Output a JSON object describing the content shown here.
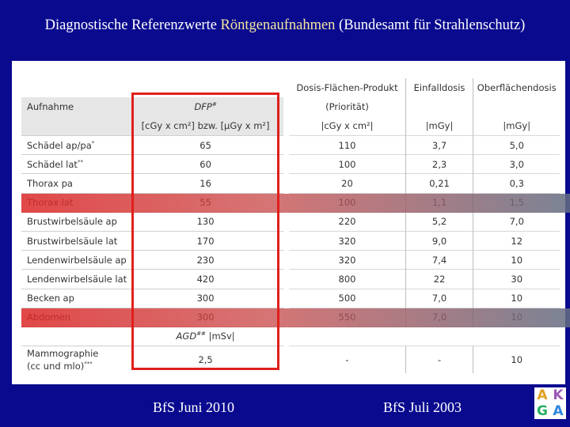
{
  "title": {
    "part1": "Diagnostische Referenzwerte ",
    "part2": "Röntgenaufnahmen",
    "part3": " (Bundesamt für Strahlenschutz)"
  },
  "table": {
    "header": {
      "aufnahme": "Aufnahme",
      "dfp": "DFP",
      "dfp_mark": "#",
      "dfp_unit": "[cGy x cm²] bzw. [µGy x m²]",
      "dfp2_line1": "Dosis-Flächen-Produkt",
      "dfp2_line2": "(Priorität)",
      "dfp2_unit": "|cGy x cm²|",
      "einfall": "Einfalldosis",
      "einfall_unit": "|mGy|",
      "ober": "Oberflächendosis",
      "ober_unit": "|mGy|"
    },
    "rows": [
      {
        "name": "Schädel ap/pa",
        "mark": "*",
        "dfp": "65",
        "dfp2": "110",
        "einfall": "3,7",
        "ober": "5,0"
      },
      {
        "name": "Schädel lat",
        "mark": "**",
        "dfp": "60",
        "dfp2": "100",
        "einfall": "2,3",
        "ober": "3,0"
      },
      {
        "name": "Thorax pa",
        "mark": "",
        "dfp": "16",
        "dfp2": "20",
        "einfall": "0,21",
        "ober": "0,3"
      },
      {
        "name": "Thorax lat",
        "mark": "",
        "dfp": "55",
        "dfp2": "100",
        "einfall": "1,1",
        "ober": "1,5"
      },
      {
        "name": "Brustwirbelsäule ap",
        "mark": "",
        "dfp": "130",
        "dfp2": "220",
        "einfall": "5,2",
        "ober": "7,0"
      },
      {
        "name": "Brustwirbelsäule lat",
        "mark": "",
        "dfp": "170",
        "dfp2": "320",
        "einfall": "9,0",
        "ober": "12"
      },
      {
        "name": "Lendenwirbelsäule ap",
        "mark": "",
        "dfp": "230",
        "dfp2": "320",
        "einfall": "7,4",
        "ober": "10"
      },
      {
        "name": "Lendenwirbelsäule lat",
        "mark": "",
        "dfp": "420",
        "dfp2": "800",
        "einfall": "22",
        "ober": "30"
      },
      {
        "name": "Becken ap",
        "mark": "",
        "dfp": "300",
        "dfp2": "500",
        "einfall": "7,0",
        "ober": "10"
      },
      {
        "name": "Abdomen",
        "mark": "",
        "dfp": "300",
        "dfp2": "550",
        "einfall": "7,0",
        "ober": "10"
      }
    ],
    "agd": {
      "label": "AGD",
      "mark": "##",
      "unit": "|mSv|"
    },
    "mammo": {
      "line1": "Mammographie",
      "line2": "(cc und mlo)",
      "mark": "***",
      "dfp": "2,5",
      "dfp2": "-",
      "einfall": "-",
      "ober": "10"
    }
  },
  "highlight_rows": [
    "Thorax lat",
    "Abdomen"
  ],
  "colors": {
    "background": "#0a0a8f",
    "highlight_box": "#e0201c"
  },
  "footer": {
    "left": "BfS  Juni 2010",
    "right": "BfS  Juli 2003"
  },
  "logo": {
    "letters": [
      "A",
      "K",
      "G",
      "A"
    ]
  }
}
